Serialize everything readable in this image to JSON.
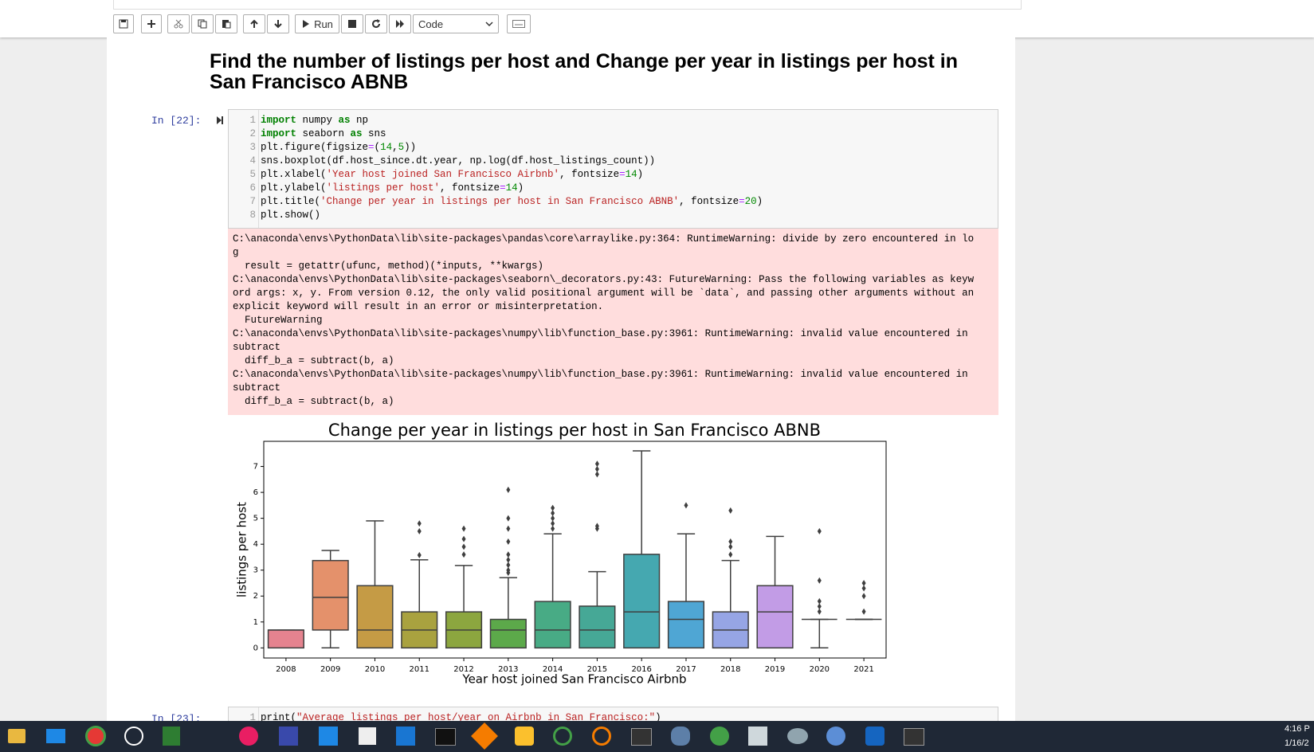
{
  "toolbar": {
    "run": "Run",
    "cell_type": "Code"
  },
  "heading": "Find the number of listings per host and Change per year in listings per host in San Francisco ABNB",
  "cells": [
    {
      "prompt": "In [22]:",
      "line_numbers": [
        "1",
        "2",
        "3",
        "4",
        "5",
        "6",
        "7",
        "8"
      ],
      "code": [
        "import numpy as np",
        "import seaborn as sns",
        "plt.figure(figsize=(14,5))",
        "sns.boxplot(df.host_since.dt.year, np.log(df.host_listings_count))",
        "plt.xlabel('Year host joined San Francisco Airbnb', fontsize=14)",
        "plt.ylabel('listings per host', fontsize=14)",
        "plt.title('Change per year in listings per host in San Francisco ABNB', fontsize=20)",
        "plt.show()"
      ],
      "stderr": [
        "C:\\anaconda\\envs\\PythonData\\lib\\site-packages\\pandas\\core\\arraylike.py:364: RuntimeWarning: divide by zero encountered in lo",
        "g",
        "  result = getattr(ufunc, method)(*inputs, **kwargs)",
        "C:\\anaconda\\envs\\PythonData\\lib\\site-packages\\seaborn\\_decorators.py:43: FutureWarning: Pass the following variables as keyw",
        "ord args: x, y. From version 0.12, the only valid positional argument will be `data`, and passing other arguments without an",
        "explicit keyword will result in an error or misinterpretation.",
        "  FutureWarning",
        "C:\\anaconda\\envs\\PythonData\\lib\\site-packages\\numpy\\lib\\function_base.py:3961: RuntimeWarning: invalid value encountered in",
        "subtract",
        "  diff_b_a = subtract(b, a)",
        "C:\\anaconda\\envs\\PythonData\\lib\\site-packages\\numpy\\lib\\function_base.py:3961: RuntimeWarning: invalid value encountered in",
        "subtract",
        "  diff_b_a = subtract(b, a)"
      ]
    },
    {
      "prompt": "In [23]:",
      "line_numbers": [
        "1"
      ],
      "code": [
        "print(\"Average listings per host/year on Airbnb in San Francisco:\")"
      ]
    }
  ],
  "chart_data": {
    "type": "box",
    "title": "Change per year in listings per host in San Francisco ABNB",
    "x_label": "Year host joined San Francisco Airbnb",
    "y_label": "listings per host",
    "categories": [
      "2008",
      "2009",
      "2010",
      "2011",
      "2012",
      "2013",
      "2014",
      "2015",
      "2016",
      "2017",
      "2018",
      "2019",
      "2020",
      "2021"
    ],
    "colors": [
      "#e5838f",
      "#e4916b",
      "#c59b45",
      "#a9a23f",
      "#8ca63f",
      "#5ca94a",
      "#48ab85",
      "#46a896",
      "#45a8b0",
      "#4fa6d4",
      "#96a5e5",
      "#c29ce6",
      "#e08fd6",
      "#e68ab5"
    ],
    "stats": [
      {
        "min": 0,
        "q1": 0,
        "median": 0.69,
        "q3": 0.69,
        "max": 0.69,
        "outliers": []
      },
      {
        "min": 0,
        "q1": 0.69,
        "median": 1.95,
        "q3": 3.37,
        "max": 3.76,
        "outliers": []
      },
      {
        "min": 0,
        "q1": 0,
        "median": 0.69,
        "q3": 2.4,
        "max": 4.9,
        "outliers": []
      },
      {
        "min": 0,
        "q1": 0,
        "median": 0.69,
        "q3": 1.39,
        "max": 3.4,
        "outliers": [
          3.58,
          4.5,
          4.8
        ]
      },
      {
        "min": 0,
        "q1": 0,
        "median": 0.69,
        "q3": 1.39,
        "max": 3.18,
        "outliers": [
          3.6,
          3.9,
          4.2,
          4.6
        ]
      },
      {
        "min": 0,
        "q1": 0,
        "median": 0.69,
        "q3": 1.1,
        "max": 2.71,
        "outliers": [
          2.9,
          3.0,
          3.2,
          3.4,
          3.6,
          4.1,
          4.6,
          5.0,
          6.1
        ]
      },
      {
        "min": 0,
        "q1": 0,
        "median": 0.69,
        "q3": 1.79,
        "max": 4.4,
        "outliers": [
          4.6,
          4.8,
          5.0,
          5.2,
          5.4
        ]
      },
      {
        "min": 0,
        "q1": 0,
        "median": 0.69,
        "q3": 1.61,
        "max": 2.94,
        "outliers": [
          4.6,
          4.7,
          6.7,
          6.9,
          7.1
        ]
      },
      {
        "min": 0,
        "q1": 0,
        "median": 1.39,
        "q3": 3.61,
        "max": 7.6,
        "outliers": []
      },
      {
        "min": 0,
        "q1": 0,
        "median": 1.1,
        "q3": 1.79,
        "max": 4.4,
        "outliers": [
          5.5
        ]
      },
      {
        "min": 0,
        "q1": 0,
        "median": 0.69,
        "q3": 1.39,
        "max": 3.37,
        "outliers": [
          3.6,
          3.9,
          4.1,
          5.3
        ]
      },
      {
        "min": 0,
        "q1": 0,
        "median": 1.39,
        "q3": 2.4,
        "max": 4.3,
        "outliers": []
      },
      {
        "min": 0,
        "q1": 1.1,
        "median": 1.1,
        "q3": 1.1,
        "max": 1.1,
        "outliers": [
          1.4,
          1.6,
          1.8,
          2.6,
          4.5
        ]
      },
      {
        "min": 1.1,
        "q1": 1.1,
        "median": 1.1,
        "q3": 1.1,
        "max": 1.1,
        "outliers": [
          1.4,
          2.0,
          2.3,
          2.5
        ]
      }
    ],
    "ylim": [
      -0.39,
      7.97
    ],
    "yticks": [
      0,
      1,
      2,
      3,
      4,
      5,
      6,
      7
    ]
  },
  "taskbar": {
    "time": "4:16 P",
    "date": "1/16/2"
  }
}
